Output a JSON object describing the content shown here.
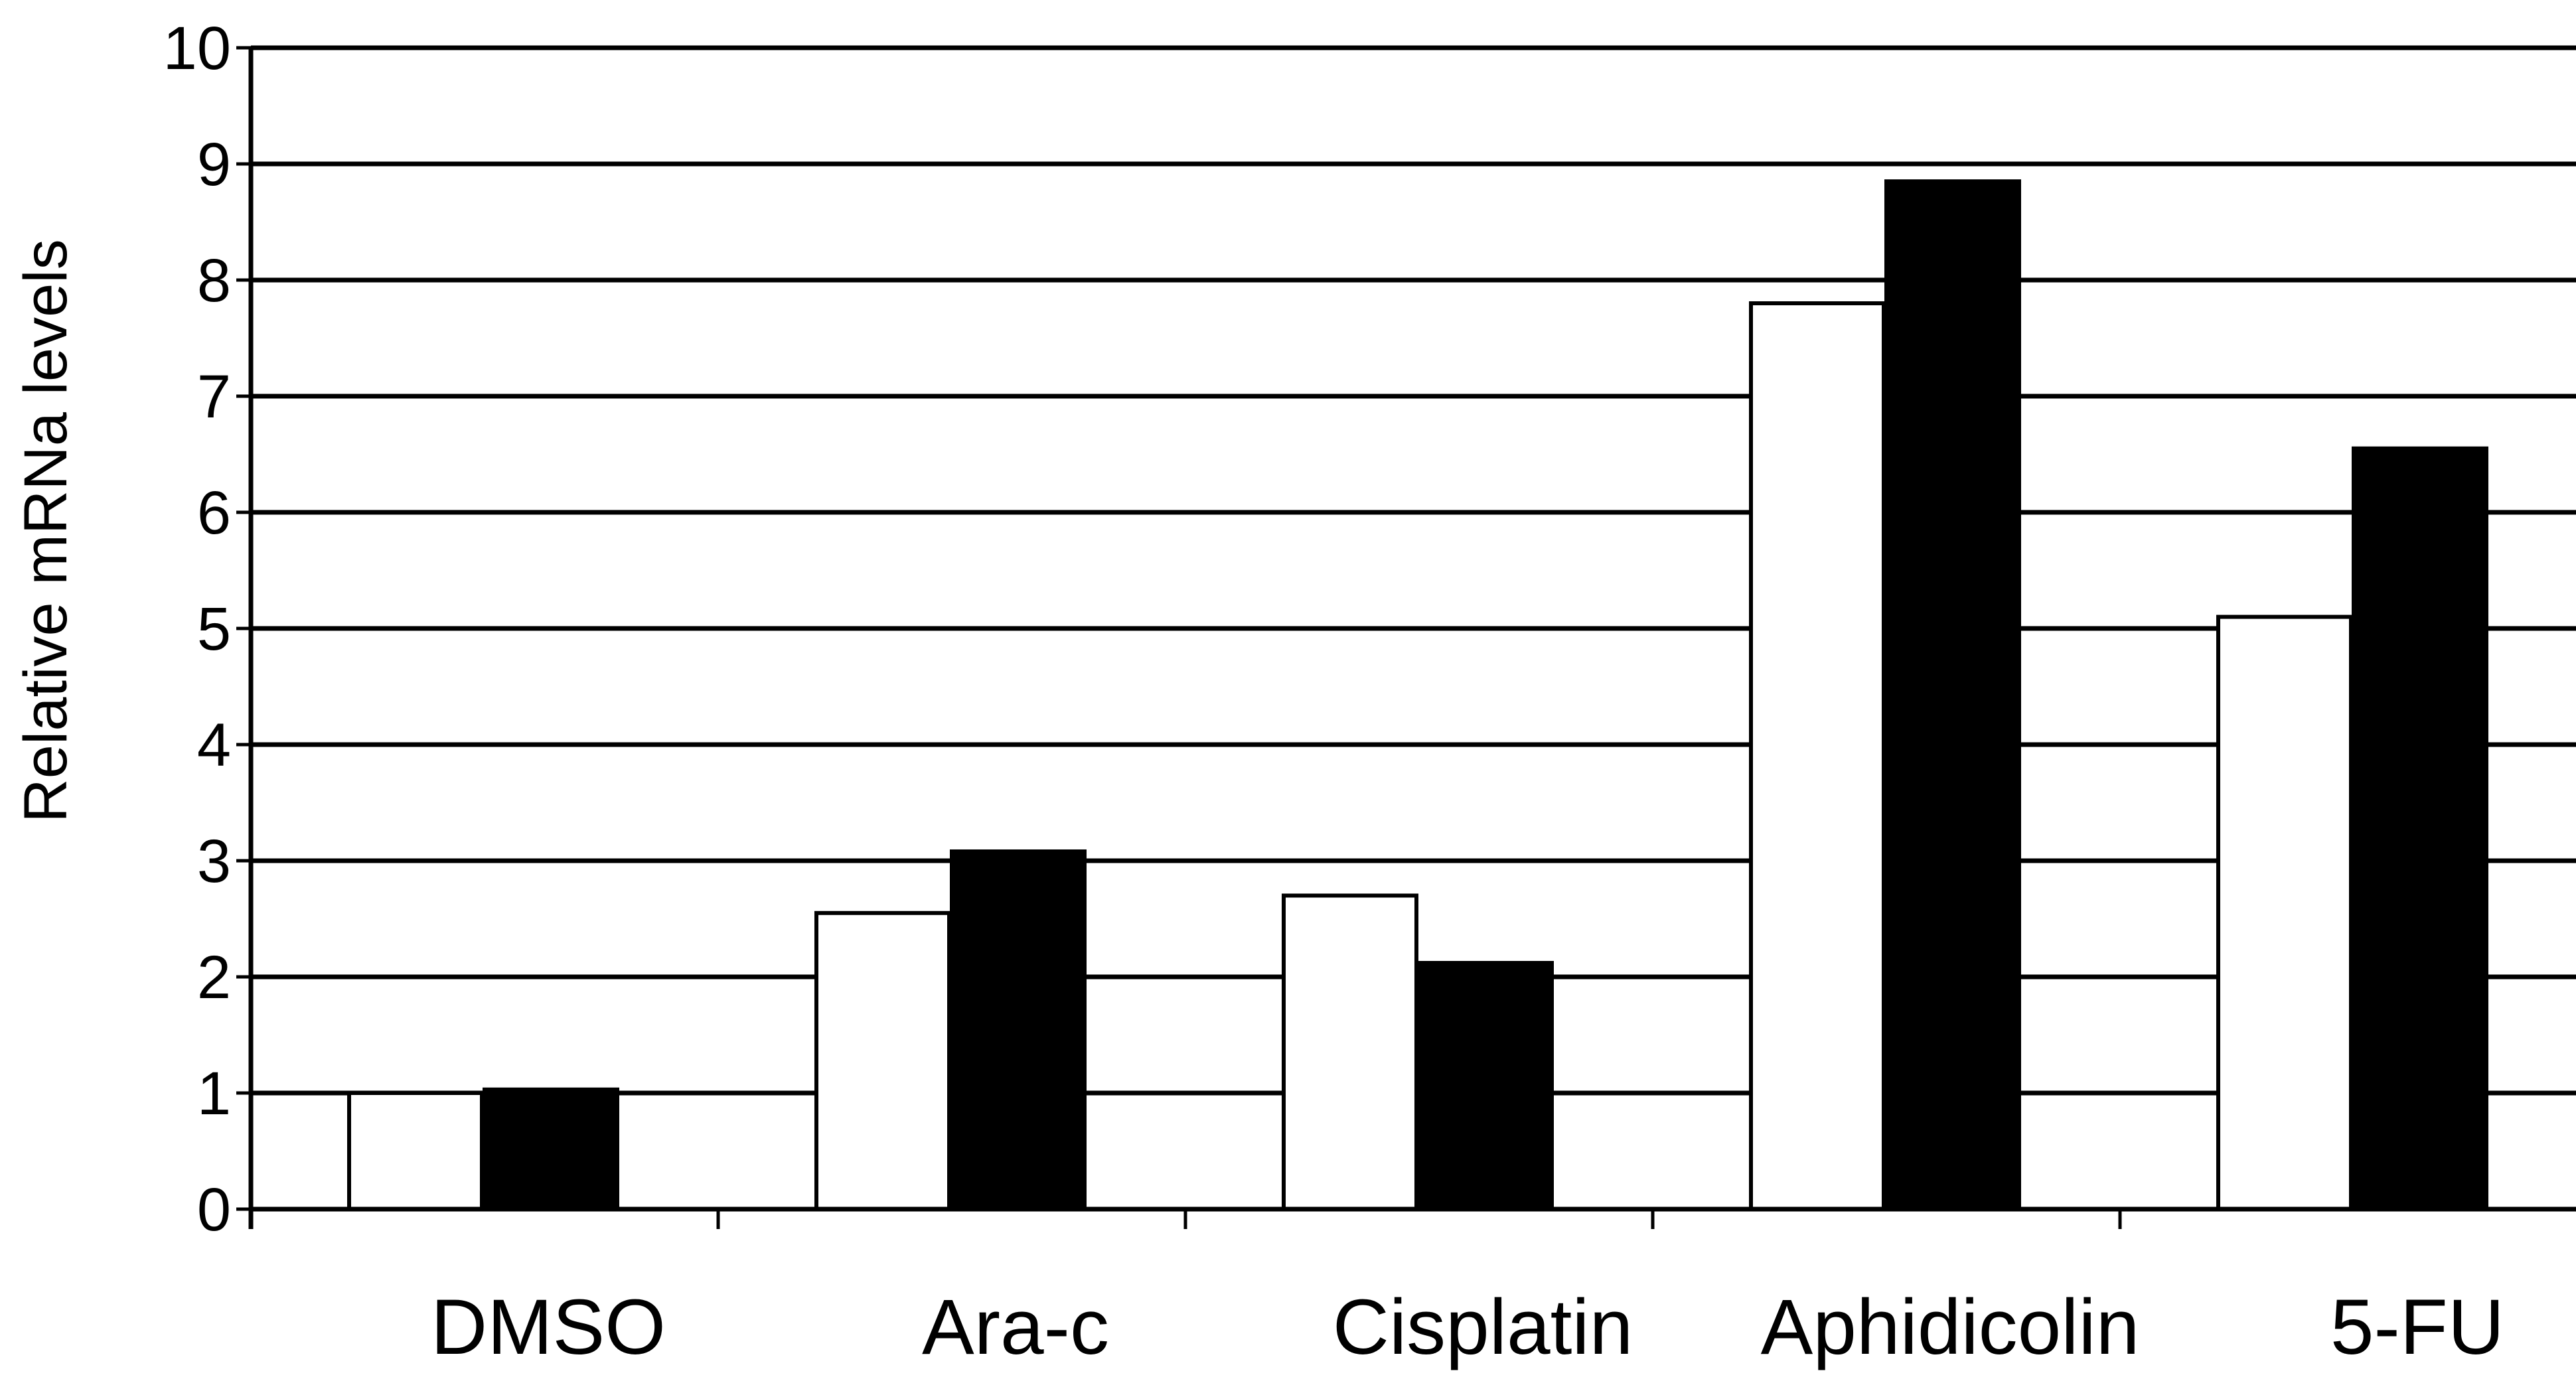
{
  "chart_data": {
    "type": "bar",
    "title": "",
    "xlabel": "",
    "ylabel": "Relative  mRNa levels",
    "ylim": [
      0,
      10
    ],
    "yticks": [
      0,
      1,
      2,
      3,
      4,
      5,
      6,
      7,
      8,
      9,
      10
    ],
    "grid": true,
    "categories": [
      "DMSO",
      "Ara-c",
      "Cisplatin",
      "Aphidicolin",
      "5-FU"
    ],
    "series": [
      {
        "color": "#ffffff",
        "values": [
          1.0,
          2.55,
          2.7,
          7.8,
          5.1
        ]
      },
      {
        "color": "#000000",
        "values": [
          1.03,
          3.08,
          2.12,
          8.85,
          6.55
        ]
      }
    ]
  }
}
